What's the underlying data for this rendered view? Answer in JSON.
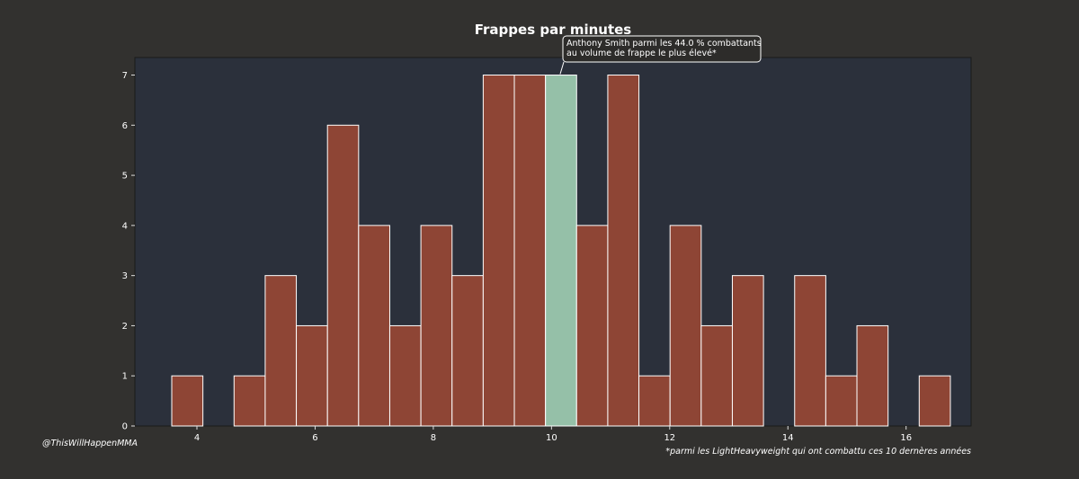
{
  "chart_data": {
    "type": "bar",
    "title": "Frappes par minutes",
    "xlabel": "",
    "ylabel": "",
    "xlim": [
      2.95,
      17.1
    ],
    "ylim": [
      0,
      7.35
    ],
    "xticks": [
      4,
      6,
      8,
      10,
      12,
      14,
      16
    ],
    "yticks": [
      0,
      1,
      2,
      3,
      4,
      5,
      6,
      7
    ],
    "bin_width": 0.527,
    "bins": [
      {
        "start": 3.574,
        "value": 1
      },
      {
        "start": 4.101,
        "value": 0
      },
      {
        "start": 4.628,
        "value": 1
      },
      {
        "start": 5.155,
        "value": 3
      },
      {
        "start": 5.682,
        "value": 2
      },
      {
        "start": 6.209,
        "value": 6
      },
      {
        "start": 6.736,
        "value": 4
      },
      {
        "start": 7.263,
        "value": 2
      },
      {
        "start": 7.79,
        "value": 4
      },
      {
        "start": 8.317,
        "value": 3
      },
      {
        "start": 8.844,
        "value": 7
      },
      {
        "start": 9.371,
        "value": 7
      },
      {
        "start": 9.898,
        "value": 7,
        "highlight": true
      },
      {
        "start": 10.425,
        "value": 4
      },
      {
        "start": 10.952,
        "value": 7
      },
      {
        "start": 11.479,
        "value": 1
      },
      {
        "start": 12.006,
        "value": 4
      },
      {
        "start": 12.533,
        "value": 2
      },
      {
        "start": 13.06,
        "value": 3
      },
      {
        "start": 13.587,
        "value": 0
      },
      {
        "start": 14.114,
        "value": 3
      },
      {
        "start": 14.641,
        "value": 1
      },
      {
        "start": 15.168,
        "value": 2
      },
      {
        "start": 15.695,
        "value": 0
      },
      {
        "start": 16.222,
        "value": 1
      }
    ],
    "grid": false,
    "annotation": {
      "line1": "Anthony Smith parmi les 44.0 % combattants",
      "line2": "au volume de frappe le plus élevé*"
    },
    "colors": {
      "background": "#32312f",
      "plot_area": "#2b303b",
      "bar": "#8e4535",
      "highlight_bar": "#95c0a8",
      "bar_edge": "#ffffff",
      "text": "#ffffff",
      "axis": "#dddddd"
    }
  },
  "credit": "@ThisWillHappenMMA",
  "footnote": "*parmi les LightHeavyweight qui ont combattu ces 10 dernères années"
}
